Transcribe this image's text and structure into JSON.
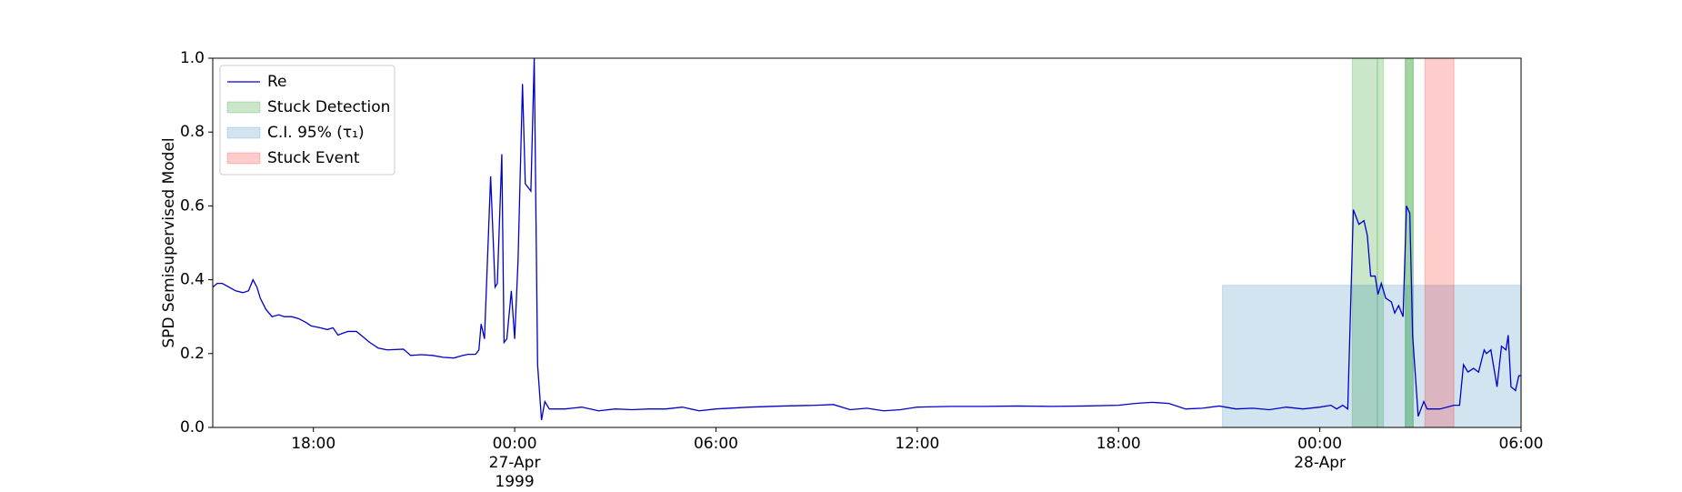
{
  "chart_data": {
    "type": "line",
    "ylabel": "SPD Semisupervised Model",
    "x": [
      "1999-04-26T15:00",
      "1999-04-26T15:08",
      "1999-04-26T15:17",
      "1999-04-26T15:29",
      "1999-04-26T15:41",
      "1999-04-26T15:54",
      "1999-04-26T16:04",
      "1999-04-26T16:12",
      "1999-04-26T16:19",
      "1999-04-26T16:25",
      "1999-04-26T16:35",
      "1999-04-26T16:46",
      "1999-04-26T16:58",
      "1999-04-26T17:08",
      "1999-04-26T17:21",
      "1999-04-26T17:33",
      "1999-04-26T17:46",
      "1999-04-26T17:56",
      "1999-04-26T18:12",
      "1999-04-26T18:25",
      "1999-04-26T18:35",
      "1999-04-26T18:44",
      "1999-04-26T18:52",
      "1999-04-26T19:02",
      "1999-04-26T19:17",
      "1999-04-26T19:29",
      "1999-04-26T19:41",
      "1999-04-26T19:56",
      "1999-04-26T20:12",
      "1999-04-26T20:41",
      "1999-04-26T20:54",
      "1999-04-26T21:13",
      "1999-04-26T21:33",
      "1999-04-26T21:52",
      "1999-04-26T22:11",
      "1999-04-26T22:27",
      "1999-04-26T22:37",
      "1999-04-26T22:50",
      "1999-04-26T22:56",
      "1999-04-26T23:00",
      "1999-04-26T23:06",
      "1999-04-26T23:17",
      "1999-04-26T23:25",
      "1999-04-26T23:29",
      "1999-04-26T23:37",
      "1999-04-26T23:41",
      "1999-04-26T23:46",
      "1999-04-26T23:54",
      "1999-04-27T00:00",
      "1999-04-27T00:06",
      "1999-04-27T00:14",
      "1999-04-27T00:19",
      "1999-04-27T00:29",
      "1999-04-27T00:35",
      "1999-04-27T00:41",
      "1999-04-27T00:48",
      "1999-04-27T00:54",
      "1999-04-27T01:02",
      "1999-04-27T01:30",
      "1999-04-27T02:00",
      "1999-04-27T02:30",
      "1999-04-27T03:00",
      "1999-04-27T03:30",
      "1999-04-27T04:00",
      "1999-04-27T04:30",
      "1999-04-27T05:00",
      "1999-04-27T05:30",
      "1999-04-27T06:00",
      "1999-04-27T07:00",
      "1999-04-27T08:00",
      "1999-04-27T09:00",
      "1999-04-27T09:30",
      "1999-04-27T10:00",
      "1999-04-27T10:30",
      "1999-04-27T11:00",
      "1999-04-27T11:30",
      "1999-04-27T12:00",
      "1999-04-27T13:00",
      "1999-04-27T14:00",
      "1999-04-27T15:00",
      "1999-04-27T16:00",
      "1999-04-27T17:00",
      "1999-04-27T18:00",
      "1999-04-27T18:30",
      "1999-04-27T19:00",
      "1999-04-27T19:30",
      "1999-04-27T20:00",
      "1999-04-27T20:30",
      "1999-04-27T21:00",
      "1999-04-27T21:30",
      "1999-04-27T22:00",
      "1999-04-27T22:30",
      "1999-04-27T23:00",
      "1999-04-27T23:30",
      "1999-04-28T00:00",
      "1999-04-28T00:20",
      "1999-04-28T00:30",
      "1999-04-28T00:41",
      "1999-04-28T00:50",
      "1999-04-28T01:00",
      "1999-04-28T01:10",
      "1999-04-28T01:19",
      "1999-04-28T01:25",
      "1999-04-28T01:31",
      "1999-04-28T01:39",
      "1999-04-28T01:44",
      "1999-04-28T01:50",
      "1999-04-28T01:58",
      "1999-04-28T02:08",
      "1999-04-28T02:14",
      "1999-04-28T02:21",
      "1999-04-28T02:29",
      "1999-04-28T02:35",
      "1999-04-28T02:41",
      "1999-04-28T02:46",
      "1999-04-28T02:56",
      "1999-04-28T03:06",
      "1999-04-28T03:12",
      "1999-04-28T03:35",
      "1999-04-28T04:00",
      "1999-04-28T04:10",
      "1999-04-28T04:17",
      "1999-04-28T04:25",
      "1999-04-28T04:35",
      "1999-04-28T04:44",
      "1999-04-28T04:54",
      "1999-04-28T04:58",
      "1999-04-28T05:06",
      "1999-04-28T05:17",
      "1999-04-28T05:25",
      "1999-04-28T05:33",
      "1999-04-28T05:37",
      "1999-04-28T05:42",
      "1999-04-28T05:50",
      "1999-04-28T05:56",
      "1999-04-28T06:00"
    ],
    "series": [
      {
        "name": "Re",
        "color": "#0000cd",
        "values": [
          0.38,
          0.39,
          0.39,
          0.38,
          0.37,
          0.365,
          0.37,
          0.4,
          0.38,
          0.35,
          0.32,
          0.3,
          0.305,
          0.3,
          0.3,
          0.295,
          0.285,
          0.275,
          0.27,
          0.265,
          0.27,
          0.25,
          0.255,
          0.26,
          0.26,
          0.245,
          0.23,
          0.215,
          0.21,
          0.212,
          0.195,
          0.197,
          0.195,
          0.19,
          0.188,
          0.195,
          0.198,
          0.198,
          0.21,
          0.28,
          0.24,
          0.68,
          0.38,
          0.39,
          0.74,
          0.23,
          0.24,
          0.37,
          0.24,
          0.45,
          0.93,
          0.66,
          0.64,
          1.0,
          0.17,
          0.02,
          0.07,
          0.05,
          0.05,
          0.055,
          0.045,
          0.05,
          0.048,
          0.05,
          0.05,
          0.055,
          0.045,
          0.05,
          0.055,
          0.058,
          0.06,
          0.062,
          0.048,
          0.052,
          0.045,
          0.048,
          0.055,
          0.057,
          0.057,
          0.058,
          0.057,
          0.058,
          0.06,
          0.065,
          0.068,
          0.065,
          0.05,
          0.052,
          0.058,
          0.05,
          0.052,
          0.048,
          0.055,
          0.05,
          0.055,
          0.06,
          0.05,
          0.06,
          0.05,
          0.59,
          0.55,
          0.56,
          0.52,
          0.41,
          0.41,
          0.36,
          0.39,
          0.35,
          0.34,
          0.31,
          0.33,
          0.3,
          0.6,
          0.58,
          0.25,
          0.03,
          0.07,
          0.05,
          0.05,
          0.06,
          0.06,
          0.17,
          0.15,
          0.16,
          0.15,
          0.21,
          0.2,
          0.21,
          0.11,
          0.22,
          0.21,
          0.25,
          0.11,
          0.1,
          0.14,
          0.14
        ]
      }
    ],
    "bands": [
      {
        "name": "Stuck Detection",
        "color": "#2ca02c",
        "opacity": 0.25,
        "ranges": [
          [
            "1999-04-28T00:58",
            "1999-04-28T01:43"
          ],
          [
            "1999-04-28T01:43",
            "1999-04-28T01:54"
          ],
          [
            "1999-04-28T02:33",
            "1999-04-28T02:47"
          ],
          [
            "1999-04-28T02:33",
            "1999-04-28T02:47"
          ]
        ]
      },
      {
        "name": "C.I. 95% (τ₁)",
        "color": "#1f77b4",
        "opacity": 0.2,
        "ranges": [
          [
            "1999-04-27T21:06",
            "1999-04-28T06:00"
          ]
        ],
        "y": [
          0,
          0.385
        ]
      },
      {
        "name": "Stuck Event",
        "color": "#ff0000",
        "opacity": 0.2,
        "ranges": [
          [
            "1999-04-28T03:08",
            "1999-04-28T04:00"
          ]
        ]
      }
    ],
    "xlim": [
      "1999-04-26T15:00",
      "1999-04-28T06:00"
    ],
    "xticks": [
      {
        "value": "1999-04-26T18:00",
        "label": "18:00"
      },
      {
        "value": "1999-04-27T00:00",
        "label": "00:00\n27-Apr\n1999"
      },
      {
        "value": "1999-04-27T06:00",
        "label": "06:00"
      },
      {
        "value": "1999-04-27T12:00",
        "label": "12:00"
      },
      {
        "value": "1999-04-27T18:00",
        "label": "18:00"
      },
      {
        "value": "1999-04-28T00:00",
        "label": "00:00\n28-Apr"
      },
      {
        "value": "1999-04-28T06:00",
        "label": "06:00"
      }
    ],
    "ylim": [
      0,
      1
    ],
    "yticks": [
      {
        "value": 0,
        "label": "0.0"
      },
      0.2,
      0.4,
      0.6,
      0.8,
      {
        "value": 1,
        "label": "1.0"
      }
    ],
    "legend": "upper left"
  }
}
